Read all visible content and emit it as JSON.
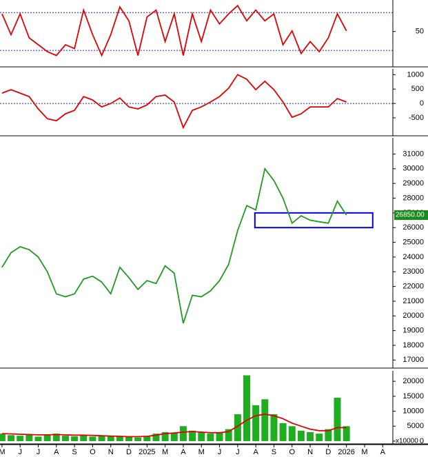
{
  "chart_data": [
    {
      "type": "line",
      "x": [
        0,
        0.5,
        1,
        1.5,
        2,
        2.5,
        3,
        3.5,
        4,
        4.5,
        5,
        5.5,
        6,
        6.5,
        7,
        7.5,
        8,
        8.5,
        9,
        9.5,
        10,
        10.5,
        11,
        11.5,
        12,
        12.5,
        13,
        13.5,
        14,
        14.5,
        15,
        15.5,
        16,
        16.5,
        17,
        17.5,
        18,
        18.5,
        19
      ],
      "ylim": [
        -5,
        100
      ],
      "yticks": [
        50
      ],
      "ref_lines": [
        20,
        80
      ],
      "series": [
        {
          "color": "#e00000",
          "values": [
            78,
            45,
            78,
            40,
            29,
            18,
            12,
            29,
            23,
            84,
            45,
            12,
            45,
            89,
            67,
            12,
            73,
            84,
            34,
            78,
            12,
            78,
            34,
            84,
            62,
            78,
            91,
            67,
            84,
            67,
            78,
            29,
            51,
            15,
            34,
            18,
            40,
            78,
            51
          ]
        }
      ]
    },
    {
      "type": "line",
      "ylim": [
        -1100,
        1200
      ],
      "yticks": [
        1000,
        500,
        0,
        -500
      ],
      "ref_lines": [
        0
      ],
      "series": [
        {
          "color": "#e00000",
          "values": [
            360,
            480,
            360,
            240,
            -190,
            -530,
            -600,
            -360,
            -240,
            240,
            120,
            -120,
            0,
            190,
            -120,
            -190,
            -50,
            240,
            290,
            50,
            -840,
            -240,
            -120,
            50,
            240,
            530,
            1000,
            840,
            480,
            770,
            480,
            50,
            -480,
            -360,
            -120,
            -120,
            -120,
            170,
            50
          ]
        }
      ]
    },
    {
      "type": "line",
      "ylim": [
        16500,
        32100
      ],
      "yticks": [
        17000,
        18000,
        19000,
        20000,
        21000,
        22000,
        23000,
        24000,
        25000,
        26000,
        27000,
        28000,
        29000,
        30000,
        31000
      ],
      "last_price": {
        "value": 26850,
        "label": "26850.00"
      },
      "highlight_range": [
        26000,
        27000
      ],
      "highlight_x": [
        13.95,
        20.45
      ],
      "series": [
        {
          "color": "#1f9a1f",
          "values": [
            23300,
            24300,
            24700,
            24500,
            24000,
            23000,
            21500,
            21300,
            21500,
            22500,
            22700,
            22300,
            21500,
            23300,
            22600,
            21800,
            22400,
            22200,
            23400,
            22900,
            19500,
            21400,
            21300,
            21700,
            22400,
            23500,
            25800,
            27500,
            27200,
            30000,
            29200,
            28000,
            26300,
            26800,
            26500,
            26400,
            26300,
            27800,
            26850
          ]
        }
      ]
    },
    {
      "type": "bar",
      "ylim": [
        -700,
        23500
      ],
      "yticks": [
        0,
        5000,
        10000,
        15000,
        20000
      ],
      "axis_note": "x10000",
      "series": [
        {
          "color": "#1fae1f",
          "values": [
            2500,
            2000,
            1800,
            2200,
            1500,
            2000,
            2500,
            1800,
            1600,
            2000,
            1500,
            1800,
            1600,
            1500,
            1400,
            1200,
            1500,
            2500,
            3000,
            2800,
            5000,
            3500,
            3000,
            2500,
            3000,
            4000,
            9000,
            22000,
            12000,
            14000,
            9000,
            6000,
            5000,
            3500,
            3000,
            2500,
            4000,
            14500,
            5000
          ]
        },
        {
          "color": "#e00000",
          "line": true,
          "values": [
            2500,
            2400,
            2300,
            2200,
            2100,
            2100,
            2200,
            2100,
            2000,
            2000,
            1900,
            1800,
            1700,
            1600,
            1500,
            1500,
            1600,
            2000,
            2500,
            2700,
            3000,
            3200,
            3000,
            2800,
            2800,
            3200,
            5000,
            7000,
            8500,
            9000,
            8500,
            7500,
            6000,
            5000,
            4000,
            3500,
            3500,
            4500,
            4500
          ]
        }
      ],
      "xlim": [
        -0.11,
        21.56
      ],
      "xticks": [
        {
          "value": 0,
          "label": "M"
        },
        {
          "value": 1,
          "label": "J"
        },
        {
          "value": 2,
          "label": "J"
        },
        {
          "value": 3,
          "label": "A"
        },
        {
          "value": 4,
          "label": "S"
        },
        {
          "value": 5,
          "label": "O"
        },
        {
          "value": 6,
          "label": "N"
        },
        {
          "value": 7,
          "label": "D"
        },
        {
          "value": 8,
          "label": "2025"
        },
        {
          "value": 9,
          "label": "M"
        },
        {
          "value": 10,
          "label": "A"
        },
        {
          "value": 11,
          "label": "M"
        },
        {
          "value": 12,
          "label": "J"
        },
        {
          "value": 13,
          "label": "J"
        },
        {
          "value": 14,
          "label": "A"
        },
        {
          "value": 15,
          "label": "S"
        },
        {
          "value": 16,
          "label": "O"
        },
        {
          "value": 17,
          "label": "N"
        },
        {
          "value": 18,
          "label": "D"
        },
        {
          "value": 19,
          "label": "2026"
        },
        {
          "value": 20,
          "label": "M"
        },
        {
          "value": 21,
          "label": "A"
        }
      ]
    }
  ]
}
